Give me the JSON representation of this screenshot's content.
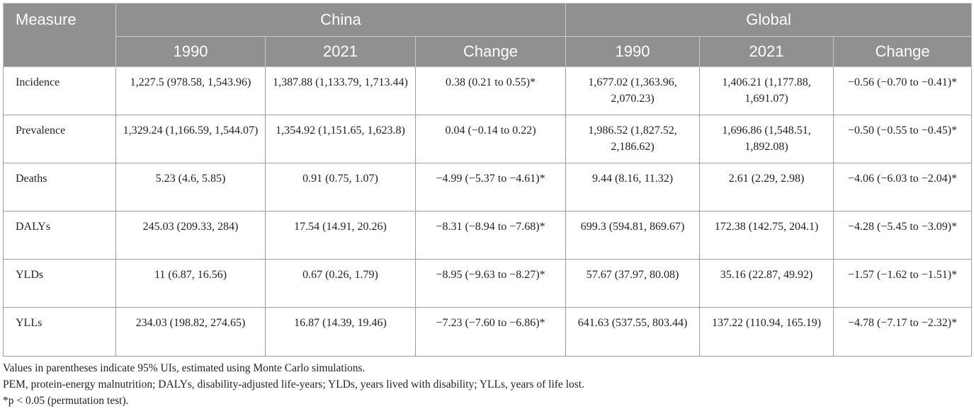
{
  "header": {
    "measure": "Measure",
    "groups": [
      "China",
      "Global"
    ],
    "subcolumns": [
      "1990",
      "2021",
      "Change",
      "1990",
      "2021",
      "Change"
    ]
  },
  "rows": [
    {
      "measure": "Incidence",
      "cells": [
        "1,227.5 (978.58, 1,543.96)",
        "1,387.88 (1,133.79, 1,713.44)",
        "0.38 (0.21 to 0.55)*",
        "1,677.02 (1,363.96, 2,070.23)",
        "1,406.21 (1,177.88, 1,691.07)",
        "−0.56 (−0.70 to −0.41)*"
      ]
    },
    {
      "measure": "Prevalence",
      "cells": [
        "1,329.24 (1,166.59, 1,544.07)",
        "1,354.92 (1,151.65, 1,623.8)",
        "0.04 (−0.14 to 0.22)",
        "1,986.52 (1,827.52, 2,186.62)",
        "1,696.86 (1,548.51, 1,892.08)",
        "−0.50 (−0.55 to −0.45)*"
      ]
    },
    {
      "measure": "Deaths",
      "cells": [
        "5.23 (4.6, 5.85)",
        "0.91 (0.75, 1.07)",
        "−4.99 (−5.37 to −4.61)*",
        "9.44 (8.16, 11.32)",
        "2.61 (2.29, 2.98)",
        "−4.06 (−6.03 to −2.04)*"
      ]
    },
    {
      "measure": "DALYs",
      "cells": [
        "245.03 (209.33, 284)",
        "17.54 (14.91, 20.26)",
        "−8.31 (−8.94 to −7.68)*",
        "699.3 (594.81, 869.67)",
        "172.38 (142.75, 204.1)",
        "−4.28 (−5.45 to −3.09)*"
      ]
    },
    {
      "measure": "YLDs",
      "cells": [
        "11 (6.87, 16.56)",
        "0.67 (0.26, 1.79)",
        "−8.95 (−9.63 to −8.27)*",
        "57.67 (37.97, 80.08)",
        "35.16 (22.87, 49.92)",
        "−1.57 (−1.62 to −1.51)*"
      ]
    },
    {
      "measure": "YLLs",
      "cells": [
        "234.03 (198.82, 274.65)",
        "16.87 (14.39, 19.46)",
        "−7.23 (−7.60 to −6.86)*",
        "641.63 (537.55, 803.44)",
        "137.22 (110.94, 165.19)",
        "−4.78 (−7.17 to −2.32)*"
      ]
    }
  ],
  "notes": [
    "Values in parentheses indicate 95% UIs, estimated using Monte Carlo simulations.",
    "PEM, protein-energy malnutrition; DALYs, disability-adjusted life-years; YLDs, years lived with disability; YLLs, years of life lost.",
    "*p < 0.05 (permutation test)."
  ],
  "colors": {
    "header_bg": "#909090",
    "header_text": "#ffffff",
    "grid": "#9c9c9c"
  }
}
